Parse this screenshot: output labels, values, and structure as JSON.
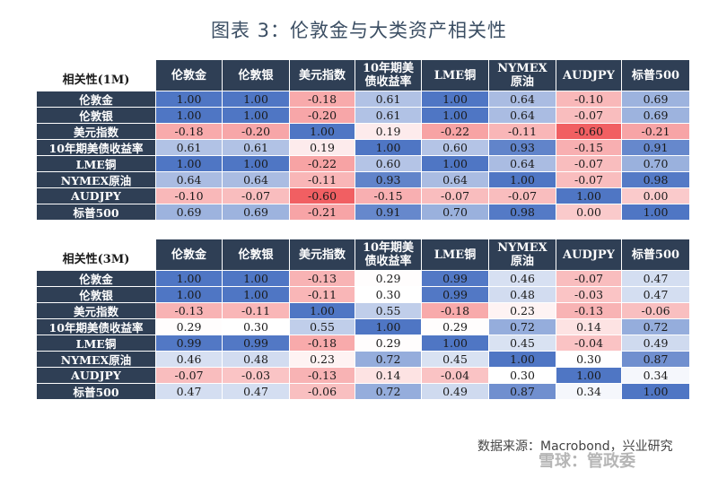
{
  "title": "图表 3：伦敦金与大类资产相关性",
  "source": "数据来源：Macrobond，兴业研究",
  "watermark": "雪球：管政委",
  "columns": [
    "伦敦金",
    "伦敦银",
    "美元指数",
    "10年期美\n债收益率",
    "LME铜",
    "NYMEX\n原油",
    "AUDJPY",
    "标普500"
  ],
  "rows": [
    "伦敦金",
    "伦敦银",
    "美元指数",
    "10年期美债收益率",
    "LME铜",
    "NYMEX原油",
    "AUDJPY",
    "标普500"
  ],
  "chart_data": [
    {
      "type": "heatmap",
      "title": "相关性(1M)",
      "values": [
        [
          "1.00",
          "1.00",
          "-0.18",
          "0.61",
          "1.00",
          "0.64",
          "-0.10",
          "0.69"
        ],
        [
          "1.00",
          "1.00",
          "-0.20",
          "0.61",
          "1.00",
          "0.64",
          "-0.07",
          "0.69"
        ],
        [
          "-0.18",
          "-0.20",
          "1.00",
          "0.19",
          "-0.22",
          "-0.11",
          "-0.60",
          "-0.21"
        ],
        [
          "0.61",
          "0.61",
          "0.19",
          "1.00",
          "0.60",
          "0.93",
          "-0.15",
          "0.91"
        ],
        [
          "1.00",
          "1.00",
          "-0.22",
          "0.60",
          "1.00",
          "0.64",
          "-0.07",
          "0.70"
        ],
        [
          "0.64",
          "0.64",
          "-0.11",
          "0.93",
          "0.64",
          "1.00",
          "-0.07",
          "0.98"
        ],
        [
          "-0.10",
          "-0.07",
          "-0.60",
          "-0.15",
          "-0.07",
          "-0.07",
          "1.00",
          "0.00"
        ],
        [
          "0.69",
          "0.69",
          "-0.21",
          "0.91",
          "0.70",
          "0.98",
          "0.00",
          "1.00"
        ]
      ]
    },
    {
      "type": "heatmap",
      "title": "相关性(3M)",
      "values": [
        [
          "1.00",
          "1.00",
          "-0.13",
          "0.29",
          "0.99",
          "0.46",
          "-0.07",
          "0.47"
        ],
        [
          "1.00",
          "1.00",
          "-0.11",
          "0.30",
          "0.99",
          "0.48",
          "-0.03",
          "0.47"
        ],
        [
          "-0.13",
          "-0.11",
          "1.00",
          "0.55",
          "-0.18",
          "0.23",
          "-0.13",
          "-0.06"
        ],
        [
          "0.29",
          "0.30",
          "0.55",
          "1.00",
          "0.29",
          "0.72",
          "0.14",
          "0.72"
        ],
        [
          "0.99",
          "0.99",
          "-0.18",
          "0.29",
          "1.00",
          "0.45",
          "-0.04",
          "0.49"
        ],
        [
          "0.46",
          "0.48",
          "0.23",
          "0.72",
          "0.45",
          "1.00",
          "0.30",
          "0.87"
        ],
        [
          "-0.07",
          "-0.03",
          "-0.13",
          "0.14",
          "-0.04",
          "0.30",
          "1.00",
          "0.34"
        ],
        [
          "0.47",
          "0.47",
          "-0.06",
          "0.72",
          "0.49",
          "0.87",
          "0.34",
          "1.00"
        ]
      ]
    }
  ]
}
